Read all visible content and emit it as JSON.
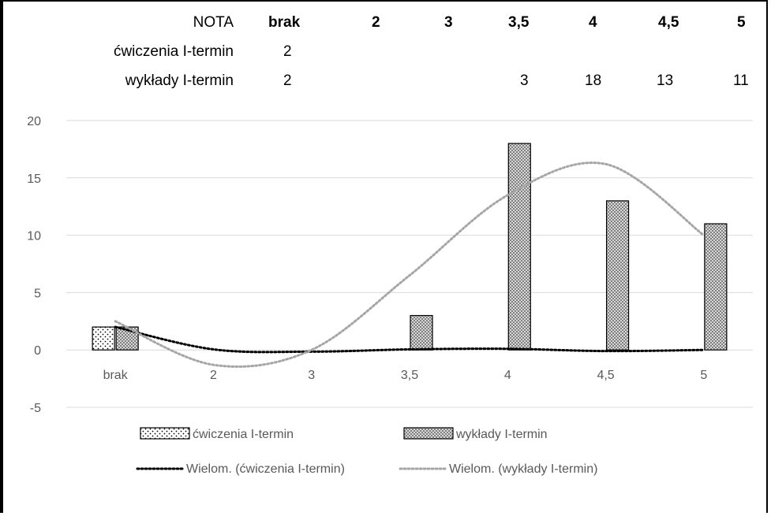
{
  "table": {
    "header_label": "NOTA",
    "rows": [
      {
        "label": "ćwiczenia I-termin",
        "cells": [
          "2",
          "",
          "",
          "",
          "",
          "",
          ""
        ]
      },
      {
        "label": "wykłady I-termin",
        "cells": [
          "2",
          "",
          "",
          "3",
          "18",
          "13",
          "11"
        ]
      }
    ]
  },
  "chart_data": {
    "type": "bar",
    "categories": [
      "brak",
      "2",
      "3",
      "3,5",
      "4",
      "4,5",
      "5"
    ],
    "ylim": [
      -5,
      20
    ],
    "yticks": [
      -5,
      0,
      5,
      10,
      15,
      20
    ],
    "grid": true,
    "legend_position": "bottom",
    "series": [
      {
        "name": "ćwiczenia I-termin",
        "values": [
          2,
          null,
          null,
          null,
          null,
          null,
          null
        ],
        "pattern": "dots"
      },
      {
        "name": "wykłady I-termin",
        "values": [
          2,
          null,
          null,
          3,
          18,
          13,
          11
        ],
        "pattern": "checker"
      }
    ],
    "trendlines": [
      {
        "name": "Wielom. (ćwiczenia I-termin)",
        "color": "#000000",
        "values": [
          2.0,
          0.05,
          -0.15,
          0.05,
          0.1,
          -0.1,
          0.0
        ]
      },
      {
        "name": "Wielom. (wykłady I-termin)",
        "color": "#a6a6a6",
        "values": [
          2.5,
          -1.3,
          0.0,
          6.5,
          13.5,
          16.2,
          10.0
        ]
      }
    ],
    "colors": {
      "grid": "#d9d9d9",
      "tick_text": "#595959",
      "bar_stroke": "#000000"
    }
  }
}
